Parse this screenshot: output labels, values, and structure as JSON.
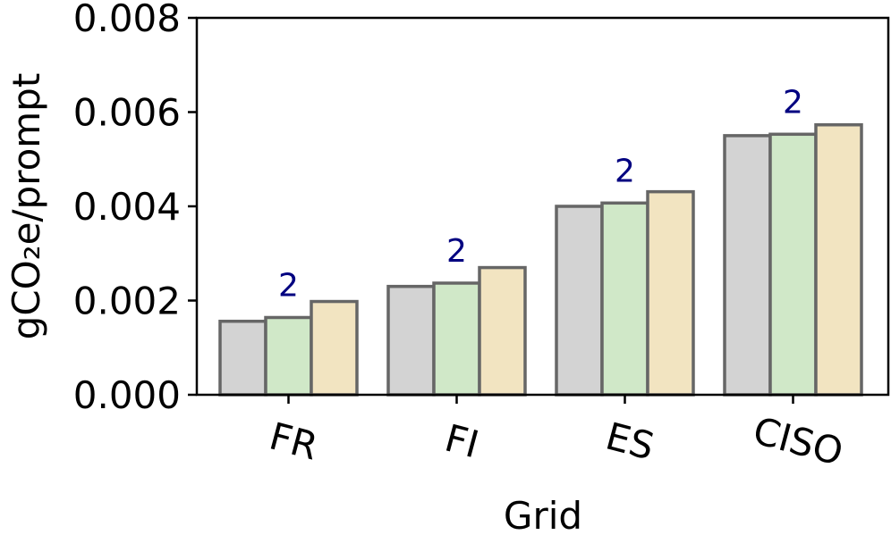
{
  "chart_data": {
    "type": "bar",
    "title": "",
    "xlabel": "Grid",
    "ylabel": "gCO₂e/prompt",
    "categories": [
      "FR",
      "FI",
      "ES",
      "CISO"
    ],
    "ylim": [
      0,
      0.008
    ],
    "yticks": [
      "0.000",
      "0.002",
      "0.004",
      "0.006",
      "0.008"
    ],
    "ytick_values": [
      0,
      0.002,
      0.004,
      0.006,
      0.008
    ],
    "grid": false,
    "series": [
      {
        "color": "#d3d3d3",
        "values": [
          0.00156,
          0.0023,
          0.004,
          0.0055
        ]
      },
      {
        "color": "#d0e8c8",
        "values": [
          0.00164,
          0.00237,
          0.00407,
          0.00553
        ]
      },
      {
        "color": "#f2e4c1",
        "values": [
          0.00198,
          0.0027,
          0.00431,
          0.00573
        ]
      }
    ],
    "annotations": [
      {
        "category": "FR",
        "text": "2"
      },
      {
        "category": "FI",
        "text": "2"
      },
      {
        "category": "ES",
        "text": "2"
      },
      {
        "category": "CISO",
        "text": "2"
      }
    ],
    "annotation_color": "#000080",
    "edge_color": "#666666",
    "tick_label_rotation": 15
  }
}
